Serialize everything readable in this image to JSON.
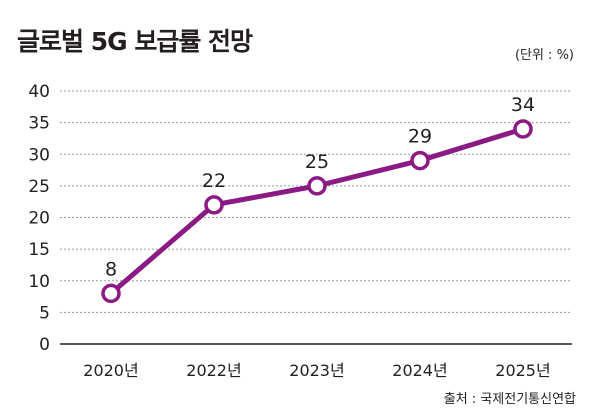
{
  "title": "글로벌 5G 보급률 전망",
  "unit_label": "(단위 : %)",
  "source": "출처 : 국제전기통신연합",
  "chart_data": {
    "type": "line",
    "categories": [
      "2020년",
      "2022년",
      "2023년",
      "2024년",
      "2025년"
    ],
    "series": [
      {
        "values": [
          8,
          22,
          25,
          29,
          34
        ]
      }
    ],
    "data_labels": [
      "8",
      "22",
      "25",
      "29",
      "34"
    ],
    "y_ticks": [
      "0",
      "5",
      "10",
      "15",
      "20",
      "25",
      "30",
      "35",
      "40"
    ],
    "ylim": [
      0,
      40
    ],
    "grid": true,
    "line_color": "#8b1a84",
    "marker_fill": "#ffffff"
  }
}
